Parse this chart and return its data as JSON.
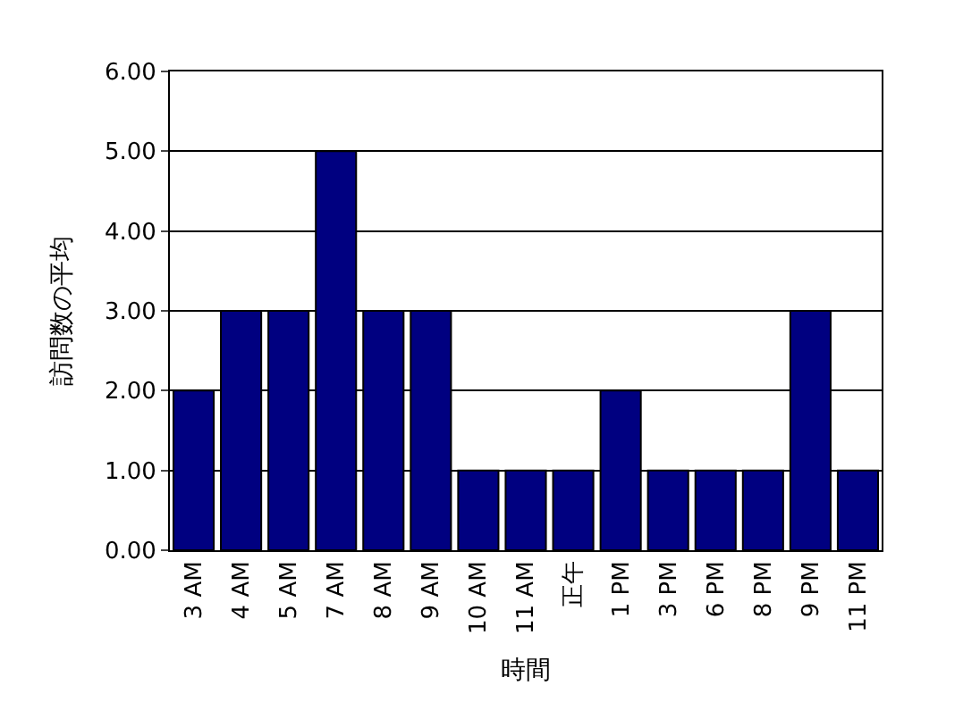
{
  "chart_data": {
    "type": "bar",
    "xlabel": "時間",
    "ylabel": "訪問数の平均",
    "categories": [
      "3 AM",
      "4 AM",
      "5 AM",
      "7 AM",
      "8 AM",
      "9 AM",
      "10 AM",
      "11 AM",
      "正午",
      "1 PM",
      "3 PM",
      "6 PM",
      "8 PM",
      "9 PM",
      "11 PM"
    ],
    "values": [
      2,
      3,
      3,
      5,
      3,
      3,
      1,
      1,
      1,
      2,
      1,
      1,
      1,
      3,
      1
    ],
    "color": "#000080",
    "ylim": [
      0,
      6
    ],
    "yticks": [
      {
        "value": 0,
        "label": "0.00"
      },
      {
        "value": 1,
        "label": "1.00"
      },
      {
        "value": 2,
        "label": "2.00"
      },
      {
        "value": 3,
        "label": "3.00"
      },
      {
        "value": 4,
        "label": "4.00"
      },
      {
        "value": 5,
        "label": "5.00"
      },
      {
        "value": 6,
        "label": "6.00"
      }
    ],
    "grid": "y"
  }
}
